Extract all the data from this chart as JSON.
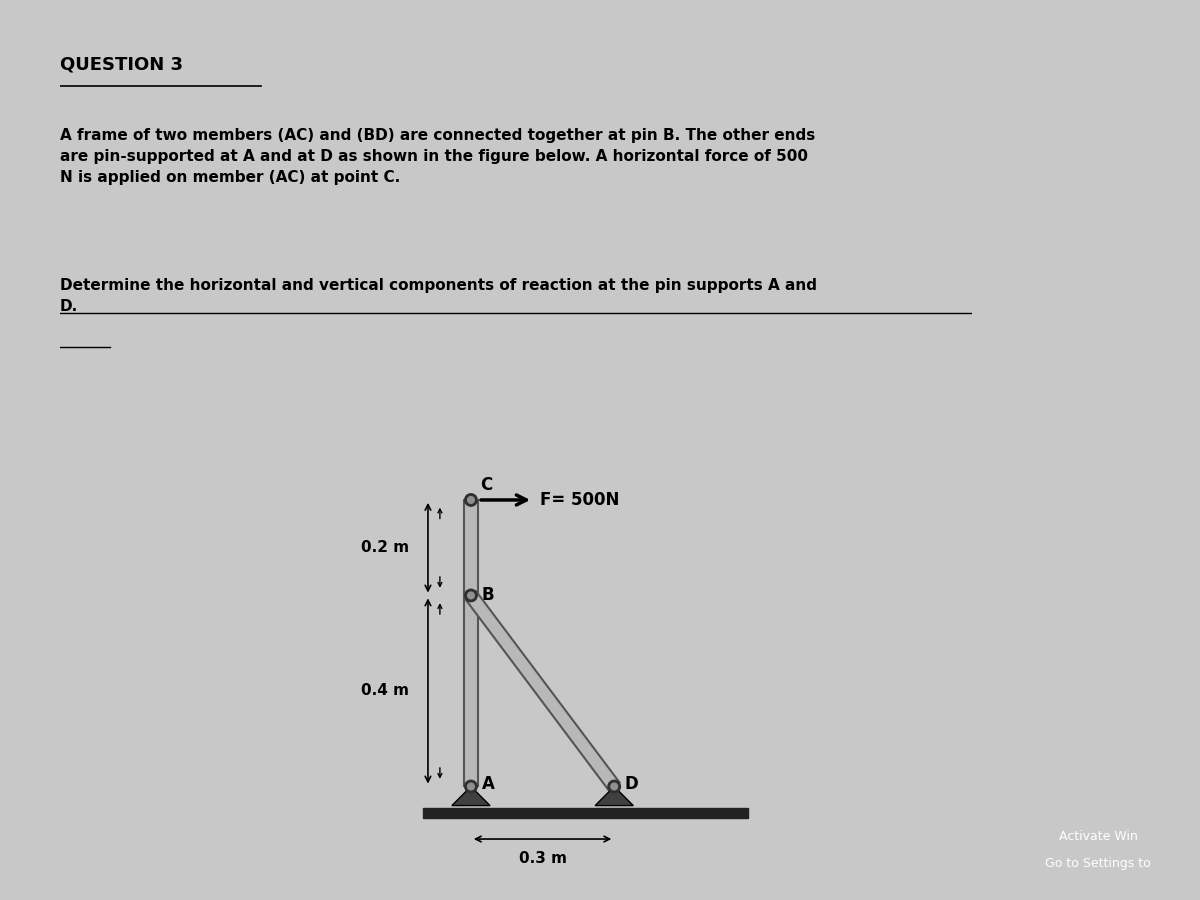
{
  "bg_color": "#c8c8c8",
  "right_panel_color": "#3a3a3a",
  "title": "QUESTION 3",
  "para1": "A frame of two members (AC) and (BD) are connected together at pin B. The other ends\nare pin-supported at A and at D as shown in the figure below. A horizontal force of 500\nN is applied on member (AC) at point C.",
  "para2": "Determine the horizontal and vertical components of reaction at the pin supports A and\nD.",
  "force_label": "F= 500N",
  "dim_CB": "0.2 m",
  "dim_BA": "0.4 m",
  "dim_AD": "0.3 m",
  "activate_line1": "Activate Win",
  "activate_line2": "Go to Settings to",
  "member_color": "#b8b8b8",
  "member_edge_color": "#555555",
  "ground_color": "#222222",
  "pin_color": "#404040",
  "text_color": "#000000",
  "A": [
    0.0,
    0.0
  ],
  "B": [
    0.0,
    0.4
  ],
  "C": [
    0.0,
    0.6
  ],
  "D": [
    0.3,
    0.0
  ]
}
